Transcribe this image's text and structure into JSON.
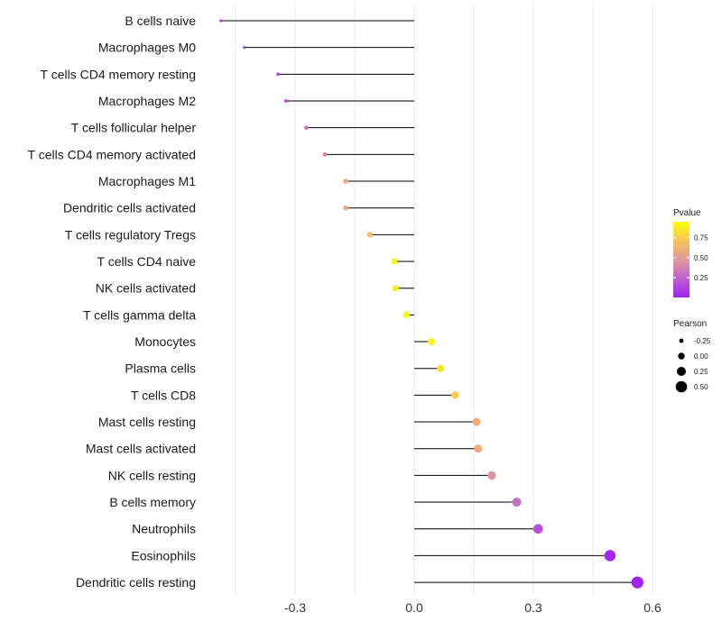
{
  "chart_data": {
    "type": "lollipop",
    "title": "",
    "xlabel": "",
    "ylabel": "",
    "xlim": [
      -0.5,
      0.62
    ],
    "xticks": [
      -0.3,
      0.0,
      0.3,
      0.6
    ],
    "xtick_labels": [
      "-0.3",
      "0.0",
      "0.3",
      "0.6"
    ],
    "categories": [
      "B cells naive",
      "Macrophages M0",
      "T cells CD4 memory resting",
      "Macrophages M2",
      "T cells follicular helper",
      "T cells CD4 memory activated",
      "Macrophages M1",
      "Dendritic cells activated",
      "T cells regulatory  Tregs ",
      "T cells CD4 naive",
      "NK cells activated",
      "T cells gamma delta",
      "Monocytes",
      "Plasma cells",
      "T cells CD8",
      "Mast cells resting",
      "Mast cells activated",
      "NK cells resting",
      "B cells memory",
      "Neutrophils",
      "Eosinophils",
      "Dendritic cells resting"
    ],
    "pearson": [
      -0.487,
      -0.428,
      -0.343,
      -0.323,
      -0.272,
      -0.225,
      -0.173,
      -0.173,
      -0.112,
      -0.05,
      -0.048,
      -0.02,
      0.043,
      0.066,
      0.103,
      0.157,
      0.161,
      0.195,
      0.258,
      0.312,
      0.493,
      0.562
    ],
    "pvalue": [
      0.02,
      0.06,
      0.15,
      0.18,
      0.3,
      0.4,
      0.55,
      0.55,
      0.7,
      0.88,
      0.89,
      0.95,
      0.9,
      0.85,
      0.75,
      0.6,
      0.58,
      0.45,
      0.3,
      0.18,
      0.03,
      0.01
    ],
    "legend_pvalue": {
      "title": "Pvalue",
      "ticks": [
        0.75,
        0.5,
        0.25
      ],
      "tick_labels": [
        "0.75",
        "0.50",
        "0.25"
      ],
      "range": [
        0.0,
        0.95
      ],
      "colors": [
        "#a020f0",
        "#c060d0",
        "#e29a9a",
        "#f7c25a",
        "#ffff00"
      ]
    },
    "legend_pearson": {
      "title": "Pearson",
      "values": [
        -0.25,
        0.0,
        0.25,
        0.5
      ],
      "labels": [
        "-0.25",
        "0.00",
        "0.25",
        "0.50"
      ]
    }
  }
}
